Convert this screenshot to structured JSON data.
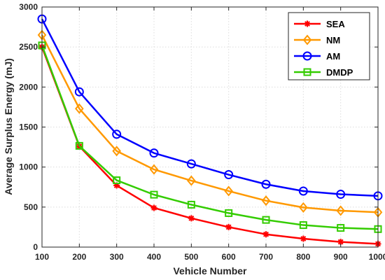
{
  "chart_data": {
    "type": "line",
    "title": "",
    "xlabel": "Vehicle Number",
    "ylabel": "Average Surplus Energy (mJ)",
    "x": [
      100,
      200,
      300,
      400,
      500,
      600,
      700,
      800,
      900,
      1000
    ],
    "xlim": [
      100,
      1000
    ],
    "ylim": [
      0,
      3000
    ],
    "xticks": [
      "100",
      "200",
      "300",
      "400",
      "500",
      "600",
      "700",
      "800",
      "900",
      "1000"
    ],
    "yticks": [
      "0",
      "500",
      "1000",
      "1500",
      "2000",
      "2500",
      "3000"
    ],
    "grid": true,
    "legend_position": "top-right",
    "series": [
      {
        "name": "SEA",
        "color": "#ff0000",
        "marker": "asterisk",
        "values": [
          2500,
          1260,
          770,
          490,
          360,
          250,
          160,
          105,
          65,
          40
        ]
      },
      {
        "name": "NM",
        "color": "#ff9900",
        "marker": "diamond",
        "values": [
          2650,
          1730,
          1200,
          970,
          830,
          700,
          580,
          495,
          455,
          435
        ]
      },
      {
        "name": "AM",
        "color": "#0000ff",
        "marker": "circle",
        "values": [
          2850,
          1940,
          1410,
          1175,
          1040,
          905,
          785,
          700,
          660,
          640
        ]
      },
      {
        "name": "DMDP",
        "color": "#33cc00",
        "marker": "square",
        "values": [
          2520,
          1265,
          835,
          655,
          530,
          425,
          340,
          275,
          240,
          225
        ]
      }
    ]
  }
}
